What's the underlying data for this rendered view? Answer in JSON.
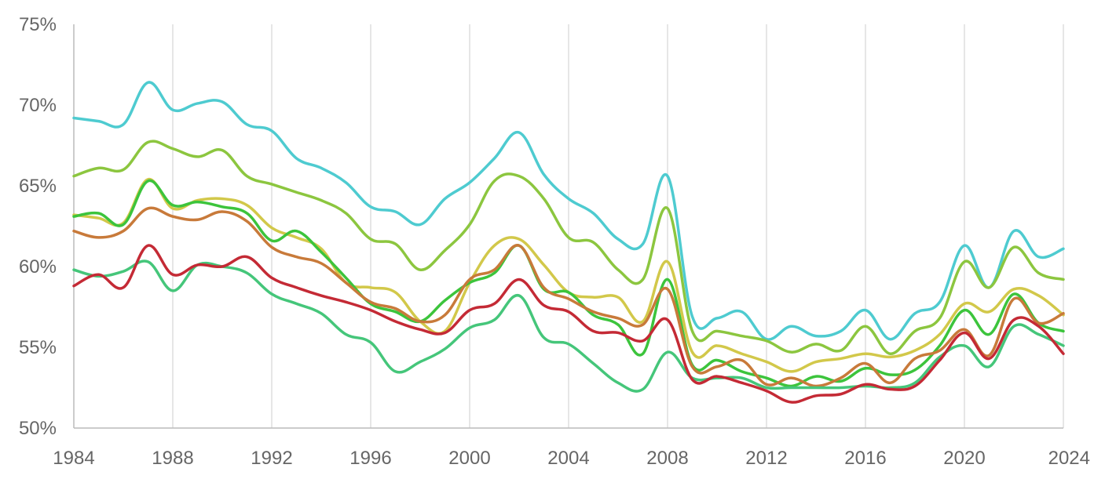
{
  "chart_data": {
    "type": "line",
    "title": "",
    "xlabel": "",
    "ylabel": "",
    "xlim": [
      1984,
      2024
    ],
    "ylim": [
      50,
      75
    ],
    "x_ticks": [
      1984,
      1988,
      1992,
      1996,
      2000,
      2004,
      2008,
      2012,
      2016,
      2020,
      2024
    ],
    "x_tick_labels": [
      "1984",
      "1988",
      "1992",
      "1996",
      "2000",
      "2004",
      "2008",
      "2012",
      "2016",
      "2020",
      "2024"
    ],
    "y_ticks": [
      50,
      55,
      60,
      65,
      70,
      75
    ],
    "y_tick_labels": [
      "50%",
      "55%",
      "60%",
      "65%",
      "70%",
      "75%"
    ],
    "grid": {
      "vertical": true,
      "horizontal": false
    },
    "legend": "none",
    "x": [
      1984,
      1985,
      1986,
      1987,
      1988,
      1989,
      1990,
      1991,
      1992,
      1993,
      1994,
      1995,
      1996,
      1997,
      1998,
      1999,
      2000,
      2001,
      2002,
      2003,
      2004,
      2005,
      2006,
      2007,
      2008,
      2009,
      2010,
      2011,
      2012,
      2013,
      2014,
      2015,
      2016,
      2017,
      2018,
      2019,
      2020,
      2021,
      2022,
      2023,
      2024
    ],
    "series": [
      {
        "color": "#4ecbd0",
        "values": [
          69.2,
          69.0,
          68.8,
          71.4,
          69.7,
          70.1,
          70.2,
          68.8,
          68.4,
          66.7,
          66.1,
          65.2,
          63.7,
          63.4,
          62.6,
          64.2,
          65.2,
          66.7,
          68.3,
          65.7,
          64.2,
          63.3,
          61.7,
          61.4,
          65.6,
          56.9,
          56.8,
          57.2,
          55.5,
          56.3,
          55.7,
          56.0,
          57.3,
          55.5,
          57.1,
          57.8,
          61.3,
          58.7,
          62.2,
          60.6,
          61.1
        ]
      },
      {
        "color": "#8cc63f",
        "values": [
          65.6,
          66.1,
          66.0,
          67.7,
          67.3,
          66.8,
          67.2,
          65.6,
          65.1,
          64.6,
          64.1,
          63.3,
          61.7,
          61.4,
          59.8,
          61.0,
          62.6,
          65.3,
          65.6,
          64.2,
          61.8,
          61.5,
          59.8,
          59.2,
          63.6,
          56.0,
          56.0,
          55.7,
          55.4,
          54.7,
          55.2,
          54.8,
          56.3,
          54.6,
          56.0,
          56.8,
          60.3,
          58.7,
          61.2,
          59.6,
          59.2
        ]
      },
      {
        "color": "#d2c84a",
        "values": [
          63.2,
          63.0,
          62.7,
          65.4,
          63.6,
          64.1,
          64.2,
          63.8,
          62.4,
          61.8,
          61.1,
          59.0,
          58.7,
          58.4,
          56.6,
          56.0,
          59.0,
          61.3,
          61.7,
          60.1,
          58.4,
          58.1,
          58.1,
          56.6,
          60.3,
          54.7,
          55.1,
          54.6,
          54.1,
          53.5,
          54.1,
          54.3,
          54.6,
          54.4,
          54.8,
          55.8,
          57.7,
          57.2,
          58.6,
          58.2,
          57.0
        ]
      },
      {
        "color": "#3cc43c",
        "values": [
          63.1,
          63.3,
          62.6,
          65.3,
          63.8,
          64.0,
          63.7,
          63.3,
          61.6,
          62.2,
          60.9,
          59.3,
          57.7,
          57.2,
          56.6,
          57.9,
          59.0,
          59.6,
          61.3,
          58.6,
          58.4,
          57.0,
          56.4,
          54.6,
          59.2,
          53.9,
          54.2,
          53.5,
          53.1,
          52.6,
          53.2,
          52.9,
          53.7,
          53.3,
          53.6,
          55.1,
          57.3,
          55.8,
          58.3,
          56.5,
          56.0
        ]
      },
      {
        "color": "#c87a3a",
        "values": [
          62.2,
          61.8,
          62.2,
          63.6,
          63.1,
          62.9,
          63.4,
          62.8,
          61.2,
          60.6,
          60.2,
          59.0,
          57.8,
          57.4,
          56.6,
          57.0,
          59.2,
          59.8,
          61.3,
          58.7,
          58.0,
          57.2,
          56.8,
          56.4,
          58.6,
          53.8,
          53.8,
          54.2,
          52.7,
          53.1,
          52.6,
          53.1,
          54.0,
          52.8,
          54.3,
          54.8,
          56.1,
          54.5,
          58.0,
          56.5,
          57.1
        ]
      },
      {
        "color": "#45c67a",
        "values": [
          59.8,
          59.4,
          59.7,
          60.3,
          58.5,
          60.1,
          60.0,
          59.6,
          58.3,
          57.7,
          57.1,
          55.8,
          55.3,
          53.5,
          54.1,
          54.9,
          56.2,
          56.7,
          58.2,
          55.6,
          55.2,
          54.0,
          52.8,
          52.4,
          54.7,
          53.1,
          53.1,
          53.1,
          52.5,
          52.5,
          52.5,
          52.5,
          52.6,
          52.5,
          52.8,
          54.4,
          55.1,
          53.8,
          56.3,
          55.8,
          55.1
        ]
      },
      {
        "color": "#c42a35",
        "values": [
          58.8,
          59.5,
          58.7,
          61.3,
          59.5,
          60.1,
          60.0,
          60.6,
          59.3,
          58.7,
          58.2,
          57.8,
          57.3,
          56.6,
          56.1,
          55.9,
          57.3,
          57.7,
          59.2,
          57.6,
          57.2,
          56.0,
          55.9,
          55.4,
          56.7,
          53.0,
          53.2,
          52.8,
          52.3,
          51.6,
          52.0,
          52.1,
          52.7,
          52.4,
          52.6,
          54.2,
          55.9,
          54.3,
          56.7,
          56.3,
          54.6
        ]
      }
    ]
  }
}
